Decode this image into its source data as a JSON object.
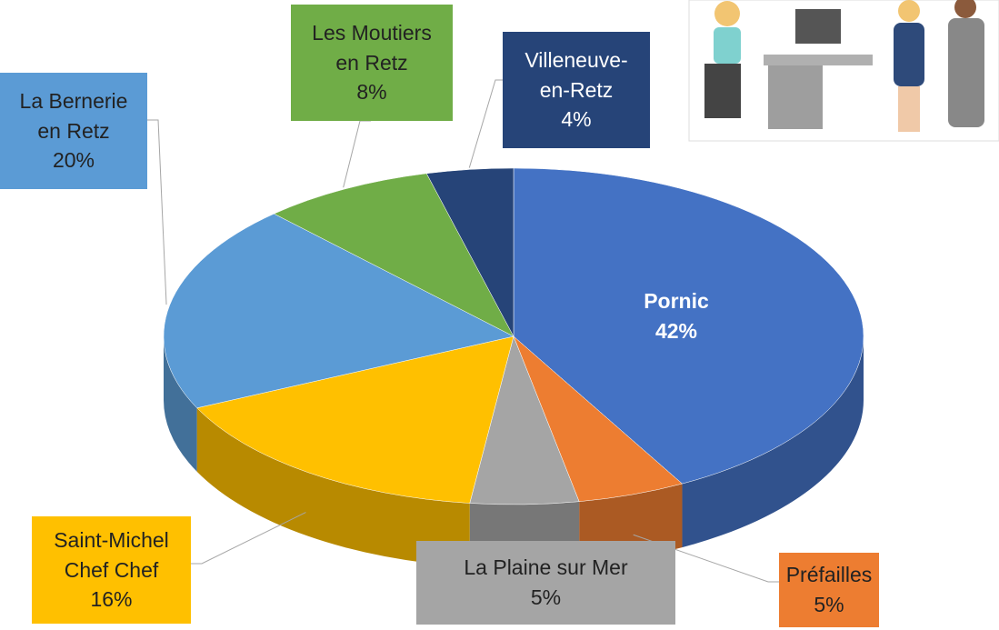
{
  "chart_data": {
    "type": "pie",
    "categories": [
      "Pornic",
      "Préfailles",
      "La Plaine sur Mer",
      "Saint-Michel Chef Chef",
      "La Bernerie en Retz",
      "Les Moutiers en Retz",
      "Villeneuve-en-Retz"
    ],
    "values": [
      42,
      5,
      5,
      16,
      20,
      8,
      4
    ],
    "value_labels": [
      "42%",
      "5%",
      "5%",
      "16%",
      "20%",
      "8%",
      "4%"
    ],
    "colors": [
      "#4472c4",
      "#ed7d31",
      "#a5a5a5",
      "#ffc000",
      "#5b9bd5",
      "#70ad47",
      "#264478"
    ]
  }
}
